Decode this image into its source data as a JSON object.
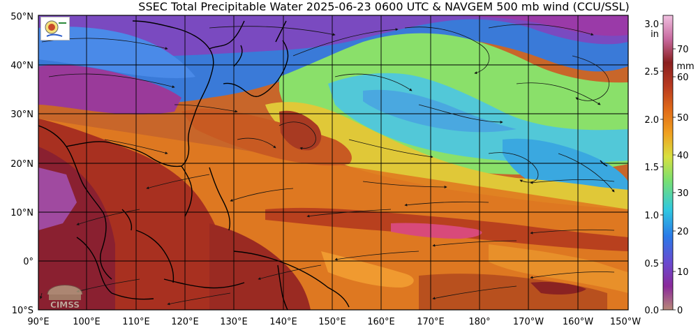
{
  "title": "SSEC Total Precipitable Water  2025-06-23 0600 UTC & NAVGEM 500 mb wind (CCU/SSL)",
  "map": {
    "lat_labels": [
      "50°N",
      "40°N",
      "30°N",
      "20°N",
      "10°N",
      "0°",
      "10°S"
    ],
    "lon_labels": [
      "90°E",
      "100°E",
      "110°E",
      "120°E",
      "130°E",
      "140°E",
      "150°E",
      "160°E",
      "170°E",
      "180°",
      "170°W",
      "160°W",
      "150°W"
    ]
  },
  "colorbar": {
    "inch_unit": "in",
    "mm_unit": "mm",
    "inch_ticks": [
      "3.0",
      "2.5",
      "2.0",
      "1.5",
      "1.0",
      "0.5",
      "0.0"
    ],
    "mm_ticks": [
      "70",
      "60",
      "50",
      "40",
      "30",
      "20",
      "10",
      "0"
    ],
    "colors": [
      "#b88878",
      "#8a2a9a",
      "#6a4ad0",
      "#2a7ae8",
      "#30c8e0",
      "#7ae070",
      "#d8e040",
      "#f0a020",
      "#e06a18",
      "#b83a20",
      "#8a2020",
      "#c86aa0",
      "#f0c0e0"
    ]
  },
  "logos": {
    "bottom_text": "CIMSS"
  }
}
